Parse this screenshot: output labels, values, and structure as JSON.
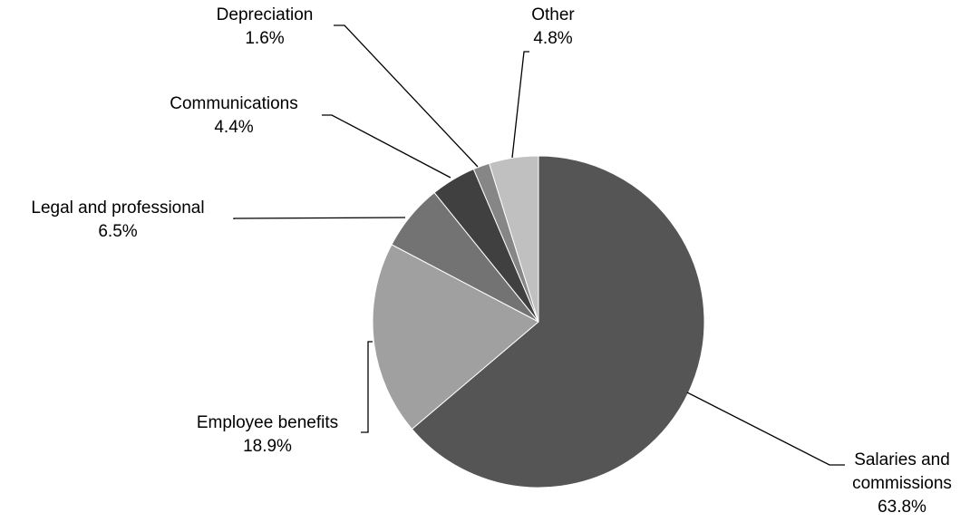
{
  "chart_data": {
    "type": "pie",
    "slices": [
      {
        "label": "Salaries and commissions",
        "label_lines": [
          "Salaries and",
          "commissions"
        ],
        "pct_text": "63.8%",
        "value": 63.8,
        "color": "#555555"
      },
      {
        "label": "Employee benefits",
        "label_lines": [
          "Employee benefits"
        ],
        "pct_text": "18.9%",
        "value": 18.9,
        "color": "#a0a0a0"
      },
      {
        "label": "Legal and professional",
        "label_lines": [
          "Legal and professional"
        ],
        "pct_text": "6.5%",
        "value": 6.5,
        "color": "#737373"
      },
      {
        "label": "Communications",
        "label_lines": [
          "Communications"
        ],
        "pct_text": "4.4%",
        "value": 4.4,
        "color": "#404040"
      },
      {
        "label": "Depreciation",
        "label_lines": [
          "Depreciation"
        ],
        "pct_text": "1.6%",
        "value": 1.6,
        "color": "#868686"
      },
      {
        "label": "Other",
        "label_lines": [
          "Other"
        ],
        "pct_text": "4.8%",
        "value": 4.8,
        "color": "#c0c0c0"
      }
    ],
    "start_angle": "12 o'clock",
    "direction": "clockwise",
    "legend": "none"
  }
}
